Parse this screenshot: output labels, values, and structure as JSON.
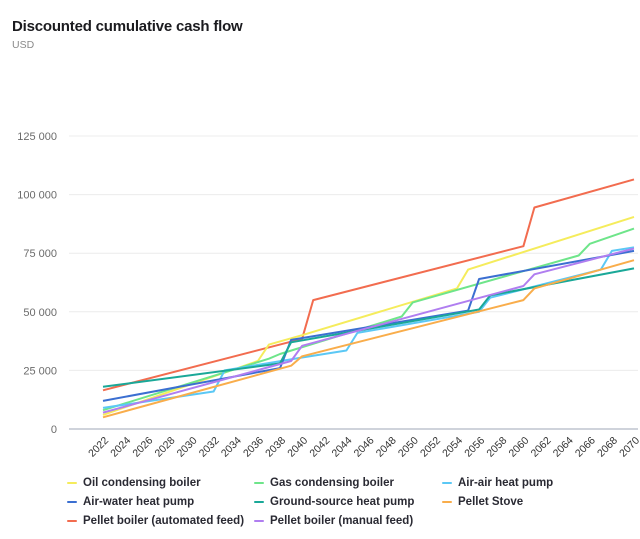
{
  "header": {
    "title": "Discounted cumulative cash flow",
    "unit": "USD"
  },
  "chart_data": {
    "type": "line",
    "title": "Discounted cumulative cash flow",
    "ylabel": "USD",
    "xlabel": "",
    "xlim": [
      2022,
      2070
    ],
    "ylim": [
      0,
      125000
    ],
    "grid": true,
    "legend_position": "bottom",
    "x_ticks": [
      "2022",
      "2024",
      "2026",
      "2028",
      "2030",
      "2032",
      "2034",
      "2036",
      "2038",
      "2040",
      "2042",
      "2044",
      "2046",
      "2048",
      "2050",
      "2052",
      "2054",
      "2056",
      "2058",
      "2060",
      "2062",
      "2064",
      "2066",
      "2068",
      "2070"
    ],
    "y_ticks": [
      {
        "value": 0,
        "label": "0"
      },
      {
        "value": 25000,
        "label": "25 000"
      },
      {
        "value": 50000,
        "label": "50 000"
      },
      {
        "value": 75000,
        "label": "75 000"
      },
      {
        "value": 100000,
        "label": "100 000"
      },
      {
        "value": 125000,
        "label": "125 000"
      }
    ],
    "series": [
      {
        "name": "Pellet boiler (automated feed)",
        "color": "#f26c4f",
        "points": [
          [
            2022,
            16500
          ],
          [
            2040,
            38500
          ],
          [
            2041,
            55000
          ],
          [
            2060,
            78000
          ],
          [
            2061,
            94500
          ],
          [
            2070,
            106500
          ]
        ]
      },
      {
        "name": "Oil condensing boiler",
        "color": "#f5ec5c",
        "points": [
          [
            2022,
            6000
          ],
          [
            2036,
            29000
          ],
          [
            2037,
            36000
          ],
          [
            2040,
            40000
          ],
          [
            2054,
            60000
          ],
          [
            2055,
            68000
          ],
          [
            2070,
            90500
          ]
        ]
      },
      {
        "name": "Gas condensing boiler",
        "color": "#6ee58a",
        "points": [
          [
            2022,
            8000
          ],
          [
            2037,
            30000
          ],
          [
            2038,
            32000
          ],
          [
            2049,
            48000
          ],
          [
            2050,
            54000
          ],
          [
            2065,
            74000
          ],
          [
            2066,
            79000
          ],
          [
            2070,
            85500
          ]
        ]
      },
      {
        "name": "Air-air heat pump",
        "color": "#5bc8f5",
        "points": [
          [
            2022,
            9000
          ],
          [
            2032,
            16000
          ],
          [
            2033,
            25000
          ],
          [
            2040,
            30500
          ],
          [
            2044,
            33500
          ],
          [
            2045,
            41000
          ],
          [
            2056,
            50000
          ],
          [
            2057,
            56000
          ],
          [
            2067,
            68000
          ],
          [
            2068,
            76000
          ],
          [
            2070,
            77500
          ]
        ]
      },
      {
        "name": "Air-water heat pump",
        "color": "#3b6fd1",
        "points": [
          [
            2022,
            12000
          ],
          [
            2038,
            26000
          ],
          [
            2039,
            38000
          ],
          [
            2055,
            50500
          ],
          [
            2056,
            64000
          ],
          [
            2070,
            76000
          ]
        ]
      },
      {
        "name": "Ground-source heat pump",
        "color": "#1aa898",
        "points": [
          [
            2022,
            18000
          ],
          [
            2038,
            28000
          ],
          [
            2039,
            37000
          ],
          [
            2056,
            51000
          ],
          [
            2057,
            57000
          ],
          [
            2070,
            68500
          ]
        ]
      },
      {
        "name": "Pellet Stove",
        "color": "#f9ad4b",
        "points": [
          [
            2022,
            5000
          ],
          [
            2039,
            27000
          ],
          [
            2040,
            31000
          ],
          [
            2060,
            55000
          ],
          [
            2061,
            60000
          ],
          [
            2070,
            72000
          ]
        ]
      },
      {
        "name": "Pellet boiler (manual feed)",
        "color": "#b07ef0",
        "points": [
          [
            2022,
            7000
          ],
          [
            2039,
            29000
          ],
          [
            2040,
            35500
          ],
          [
            2060,
            61000
          ],
          [
            2061,
            66000
          ],
          [
            2070,
            77000
          ]
        ]
      }
    ]
  },
  "legend": [
    {
      "label": "Oil condensing boiler",
      "color": "#f5ec5c"
    },
    {
      "label": "Gas condensing boiler",
      "color": "#6ee58a"
    },
    {
      "label": "Air-air heat pump",
      "color": "#5bc8f5"
    },
    {
      "label": "Air-water heat pump",
      "color": "#3b6fd1"
    },
    {
      "label": "Ground-source heat pump",
      "color": "#1aa898"
    },
    {
      "label": "Pellet Stove",
      "color": "#f9ad4b"
    },
    {
      "label": "Pellet boiler (automated feed)",
      "color": "#f26c4f"
    },
    {
      "label": "Pellet boiler (manual feed)",
      "color": "#b07ef0"
    }
  ]
}
